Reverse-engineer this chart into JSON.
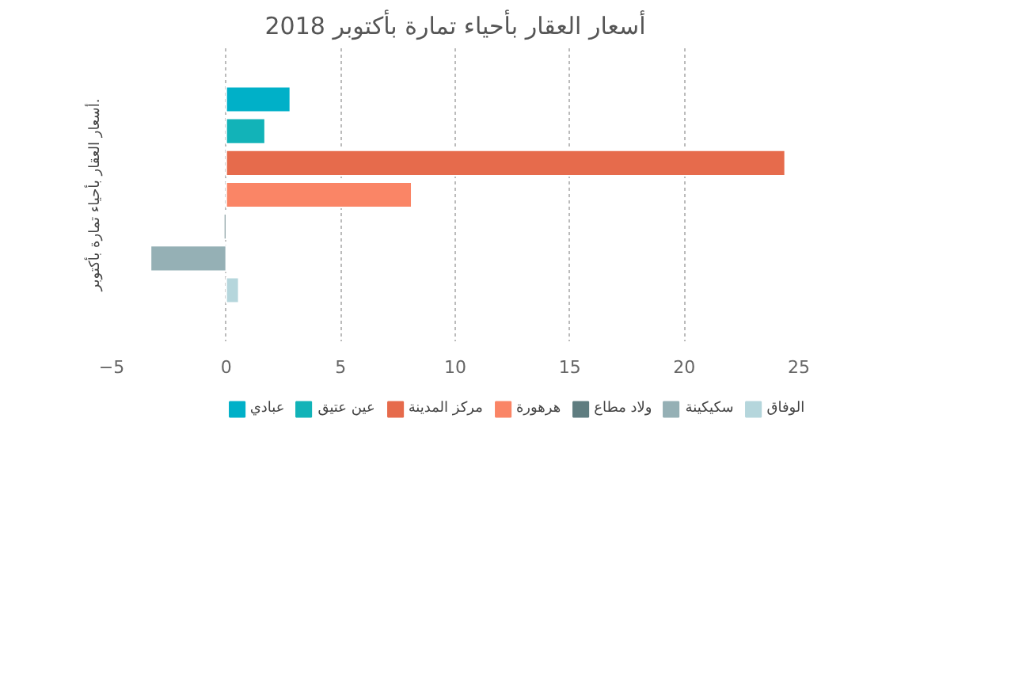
{
  "chart_data": {
    "type": "bar",
    "orientation": "horizontal",
    "title": "أسعار العقار بأحياء تمارة بأكتوبر 2018",
    "ylabel": "أسعار العقار بأحياء تمارة بأكتوبر.",
    "categories": [
      null
    ],
    "series": [
      {
        "name": "عبادي",
        "color": "#00b0c8",
        "values": [
          2.8
        ]
      },
      {
        "name": "عين عتيق",
        "color": "#12b3b8",
        "values": [
          1.7
        ]
      },
      {
        "name": "مركز المدينة",
        "color": "#e66b4c",
        "values": [
          24.4
        ]
      },
      {
        "name": "هرهورة",
        "color": "#fa8566",
        "values": [
          8.1
        ]
      },
      {
        "name": "ولاد مطاع",
        "color": "#5f7d80",
        "values": [
          -0.1
        ]
      },
      {
        "name": "سكيكينة",
        "color": "#95b0b5",
        "values": [
          -3.3
        ]
      },
      {
        "name": "الوفاق",
        "color": "#b5d6dc",
        "values": [
          0.55
        ]
      }
    ],
    "xlim": [
      -5,
      25
    ],
    "xticks": [
      -5,
      0,
      5,
      10,
      15,
      20,
      25
    ],
    "grid": "x",
    "legend": "bottom"
  }
}
